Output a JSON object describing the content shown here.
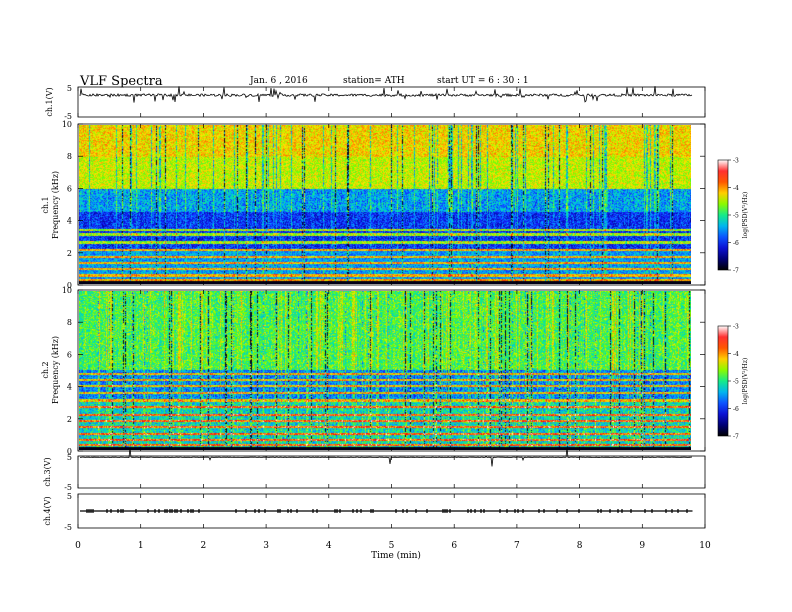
{
  "header": {
    "title": "VLF  Spectra",
    "date": "Jan. 6  , 2016",
    "station": "station= ATH",
    "start_ut": "start  UT  =   6  : 30 : 1"
  },
  "colors": {
    "spectrogram_scale": [
      "#000000",
      "#1a1aff",
      "#00b4ff",
      "#00e6a0",
      "#8cff00",
      "#ffe600",
      "#ff6a00",
      "#ff0000",
      "#ffc8c8",
      "#ffffff"
    ]
  },
  "chart_data": [
    {
      "type": "line",
      "name": "ch1-waveform",
      "ylabel": "ch.1(V)",
      "ylim": [
        -5,
        5
      ],
      "y_ticks": [
        "5",
        "-5"
      ],
      "x_range_min": [
        0,
        10
      ],
      "baseline_level": 2.3,
      "series_extent_min": [
        0,
        9.8
      ]
    },
    {
      "type": "heatmap",
      "name": "ch1-spectrogram",
      "ylabel": [
        "ch.1",
        "Frequency  (kHz)"
      ],
      "ylim_khz": [
        0,
        10
      ],
      "y_ticks": [
        "0",
        "2",
        "4",
        "6",
        "8",
        "10"
      ],
      "colorbar": {
        "label": "log(PSD(V²/Hz)",
        "ticks": [
          "-3",
          "-4",
          "-5",
          "-6",
          "-7"
        ],
        "range": [
          -7,
          -3
        ]
      },
      "description_bands_khz": {
        "dark_below": 6,
        "bright_above": 6
      }
    },
    {
      "type": "heatmap",
      "name": "ch2-spectrogram",
      "ylabel": [
        "ch.2",
        "Frequency  (kHz)"
      ],
      "ylim_khz": [
        0,
        10
      ],
      "y_ticks": [
        "0",
        "2",
        "4",
        "6",
        "8",
        "10"
      ],
      "colorbar": {
        "label": "log(PSD(V²/Hz)",
        "ticks": [
          "-3",
          "-4",
          "-5",
          "-6",
          "-7"
        ],
        "range": [
          -7,
          -3
        ]
      }
    },
    {
      "type": "line",
      "name": "ch3-waveform",
      "ylabel": "ch.3(V)",
      "ylim": [
        -5,
        5
      ],
      "y_ticks": [
        "5",
        "-5"
      ],
      "baseline_level": 4.6
    },
    {
      "type": "line",
      "name": "ch4-waveform",
      "ylabel": "ch.4(V)",
      "ylim": [
        -5,
        5
      ],
      "y_ticks": [
        "5",
        "-5"
      ],
      "baseline_level": 0
    }
  ],
  "x_axis": {
    "label": "Time  (min)",
    "ticks": [
      "0",
      "1",
      "2",
      "3",
      "4",
      "5",
      "6",
      "7",
      "8",
      "9",
      "10"
    ],
    "range": [
      0,
      10
    ],
    "data_end": 9.8
  }
}
